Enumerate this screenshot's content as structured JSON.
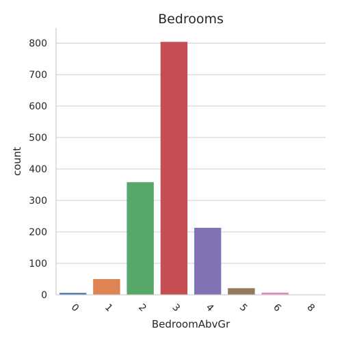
{
  "chart_data": {
    "type": "bar",
    "title": "Bedrooms",
    "xlabel": "BedroomAbvGr",
    "ylabel": "count",
    "categories": [
      "0",
      "1",
      "2",
      "3",
      "4",
      "5",
      "6",
      "8"
    ],
    "values": [
      6,
      50,
      358,
      804,
      213,
      21,
      7,
      1
    ],
    "colors": [
      "#4c72b0",
      "#dd8452",
      "#55a868",
      "#c44e52",
      "#8172b3",
      "#937860",
      "#da8bc3",
      "#8c8c8c"
    ],
    "ylim": [
      0,
      848
    ],
    "yticks": [
      0,
      100,
      200,
      300,
      400,
      500,
      600,
      700,
      800
    ],
    "grid": true,
    "legend": "none"
  }
}
